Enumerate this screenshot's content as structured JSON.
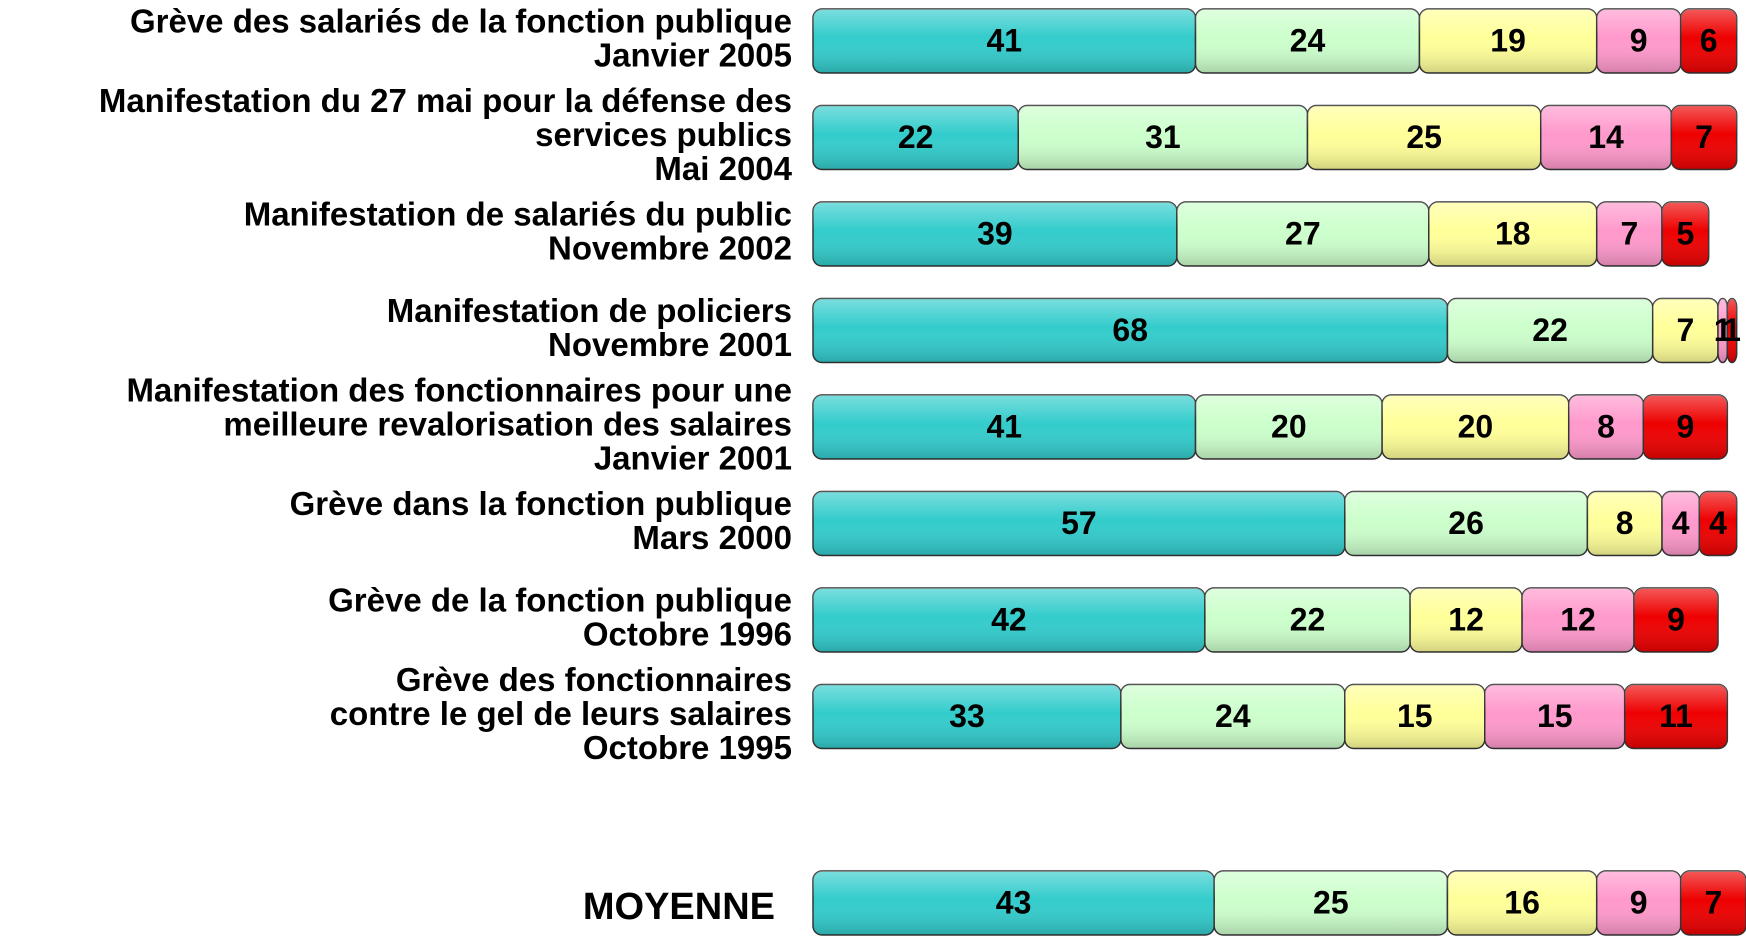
{
  "chart_data": {
    "type": "stacked_bar_horizontal",
    "categories": [
      [
        "Grève des salariés de la fonction publique",
        "Janvier 2005"
      ],
      [
        "Manifestation du 27 mai pour la défense des",
        "services publics",
        "Mai 2004"
      ],
      [
        "Manifestation de salariés du public",
        "Novembre 2002"
      ],
      [
        "Manifestation de policiers",
        "Novembre 2001"
      ],
      [
        "Manifestation des fonctionnaires pour une",
        "meilleure revalorisation des salaires",
        "Janvier 2001"
      ],
      [
        "Grève dans la fonction publique",
        "Mars 2000"
      ],
      [
        "Grève de la fonction publique",
        "Octobre 1996"
      ],
      [
        "Grève des fonctionnaires",
        "contre le gel de leurs salaires",
        "Octobre 1995"
      ],
      [
        "MOYENNE"
      ]
    ],
    "series": [
      {
        "color": "#33cccc",
        "values": [
          41,
          22,
          39,
          68,
          41,
          57,
          42,
          33,
          43
        ]
      },
      {
        "color": "#ccffcc",
        "values": [
          24,
          31,
          27,
          22,
          20,
          26,
          22,
          24,
          25
        ]
      },
      {
        "color": "#ffff99",
        "values": [
          19,
          25,
          18,
          7,
          20,
          8,
          12,
          15,
          16
        ]
      },
      {
        "color": "#ff99cc",
        "values": [
          9,
          14,
          7,
          1,
          8,
          4,
          12,
          15,
          9
        ]
      },
      {
        "color": "#ee0000",
        "values": [
          6,
          7,
          5,
          1,
          9,
          4,
          9,
          11,
          7
        ]
      }
    ],
    "xlim": [
      0,
      100
    ]
  }
}
